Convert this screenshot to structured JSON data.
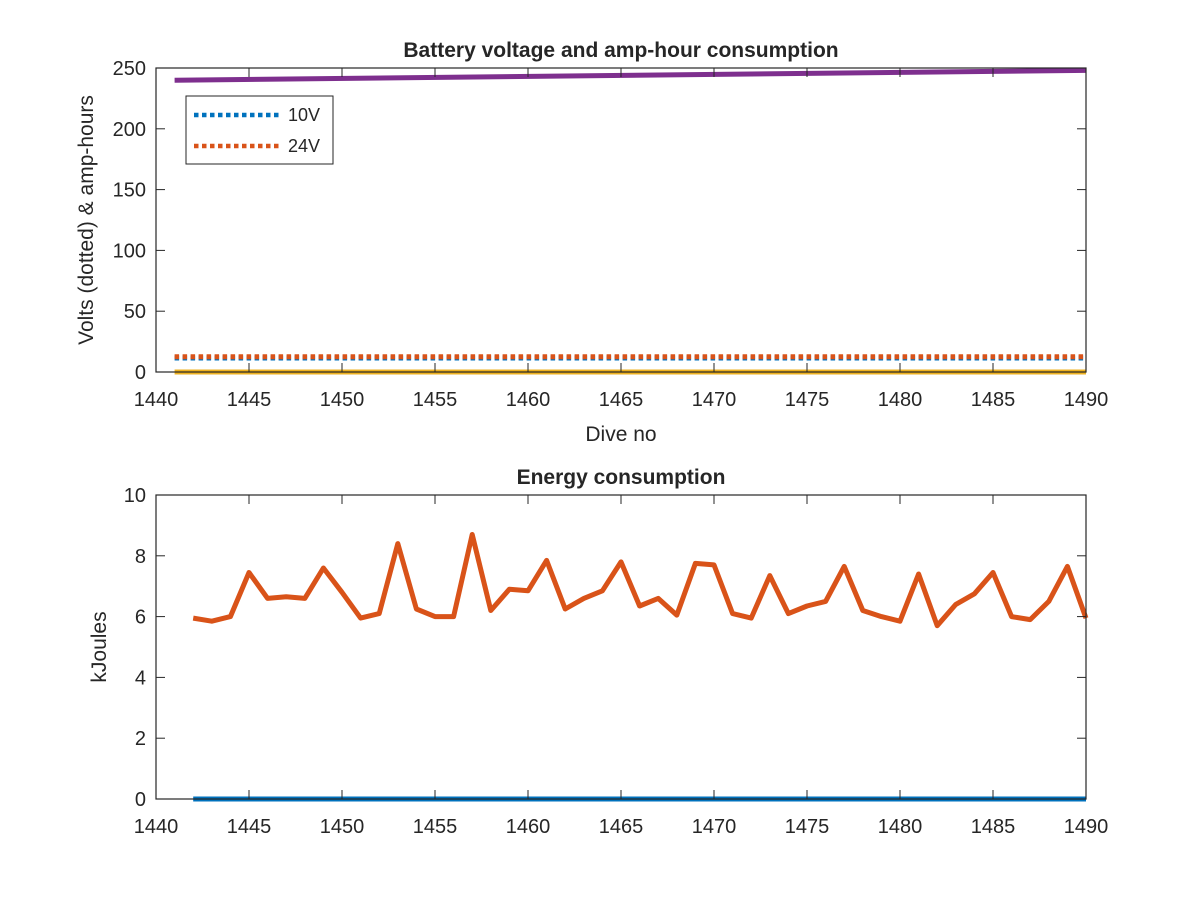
{
  "chart_data": [
    {
      "type": "line",
      "title": "Battery voltage and amp-hour consumption",
      "xlabel": "Dive no",
      "ylabel": "Volts (dotted) & amp-hours",
      "xlim": [
        1440,
        1490
      ],
      "ylim": [
        0,
        250
      ],
      "xticks": [
        "1440",
        "1445",
        "1450",
        "1455",
        "1460",
        "1465",
        "1470",
        "1475",
        "1480",
        "1485",
        "1490"
      ],
      "yticks": [
        "0",
        "50",
        "100",
        "150",
        "200",
        "250"
      ],
      "grid": false,
      "legend_position": "top-left",
      "series": [
        {
          "name": "10V",
          "style": "dotted",
          "color": "#0072BD",
          "x": [
            1441,
            1490
          ],
          "y": [
            11.5,
            11.5
          ]
        },
        {
          "name": "24V",
          "style": "dotted",
          "color": "#D95319",
          "x": [
            1441,
            1490
          ],
          "y": [
            12.5,
            12.5
          ]
        },
        {
          "style": "solid",
          "color": "#EDB120",
          "x": [
            1441,
            1490
          ],
          "y": [
            0,
            0
          ]
        },
        {
          "style": "solid",
          "color": "#7E2F8E",
          "x": [
            1441,
            1490
          ],
          "y": [
            240,
            248
          ]
        }
      ]
    },
    {
      "type": "line",
      "title": "Energy consumption",
      "xlabel": "",
      "ylabel": "kJoules",
      "xlim": [
        1440,
        1490
      ],
      "ylim": [
        0,
        10
      ],
      "xticks": [
        "1440",
        "1445",
        "1450",
        "1455",
        "1460",
        "1465",
        "1470",
        "1475",
        "1480",
        "1485",
        "1490"
      ],
      "yticks": [
        "0",
        "2",
        "4",
        "6",
        "8",
        "10"
      ],
      "grid": false,
      "series": [
        {
          "style": "solid",
          "color": "#0072BD",
          "x": [
            1442,
            1490
          ],
          "y": [
            0,
            0
          ]
        },
        {
          "style": "solid",
          "color": "#D95319",
          "x": [
            1442,
            1443,
            1444,
            1445,
            1446,
            1447,
            1448,
            1449,
            1450,
            1451,
            1452,
            1453,
            1454,
            1455,
            1456,
            1457,
            1458,
            1459,
            1460,
            1461,
            1462,
            1463,
            1464,
            1465,
            1466,
            1467,
            1468,
            1469,
            1470,
            1471,
            1472,
            1473,
            1474,
            1475,
            1476,
            1477,
            1478,
            1479,
            1480,
            1481,
            1482,
            1483,
            1484,
            1485,
            1486,
            1487,
            1488,
            1489,
            1490
          ],
          "y": [
            5.95,
            5.85,
            6.0,
            7.45,
            6.6,
            6.65,
            6.6,
            7.6,
            6.8,
            5.95,
            6.1,
            8.4,
            6.25,
            6.0,
            6.0,
            8.7,
            6.2,
            6.9,
            6.85,
            7.85,
            6.25,
            6.6,
            6.85,
            7.8,
            6.35,
            6.6,
            6.05,
            7.75,
            7.7,
            6.1,
            5.95,
            7.35,
            6.1,
            6.35,
            6.5,
            7.65,
            6.2,
            6.0,
            5.85,
            7.4,
            5.7,
            6.4,
            6.75,
            7.45,
            6.0,
            5.9,
            6.5,
            7.65,
            5.95
          ]
        }
      ]
    }
  ]
}
